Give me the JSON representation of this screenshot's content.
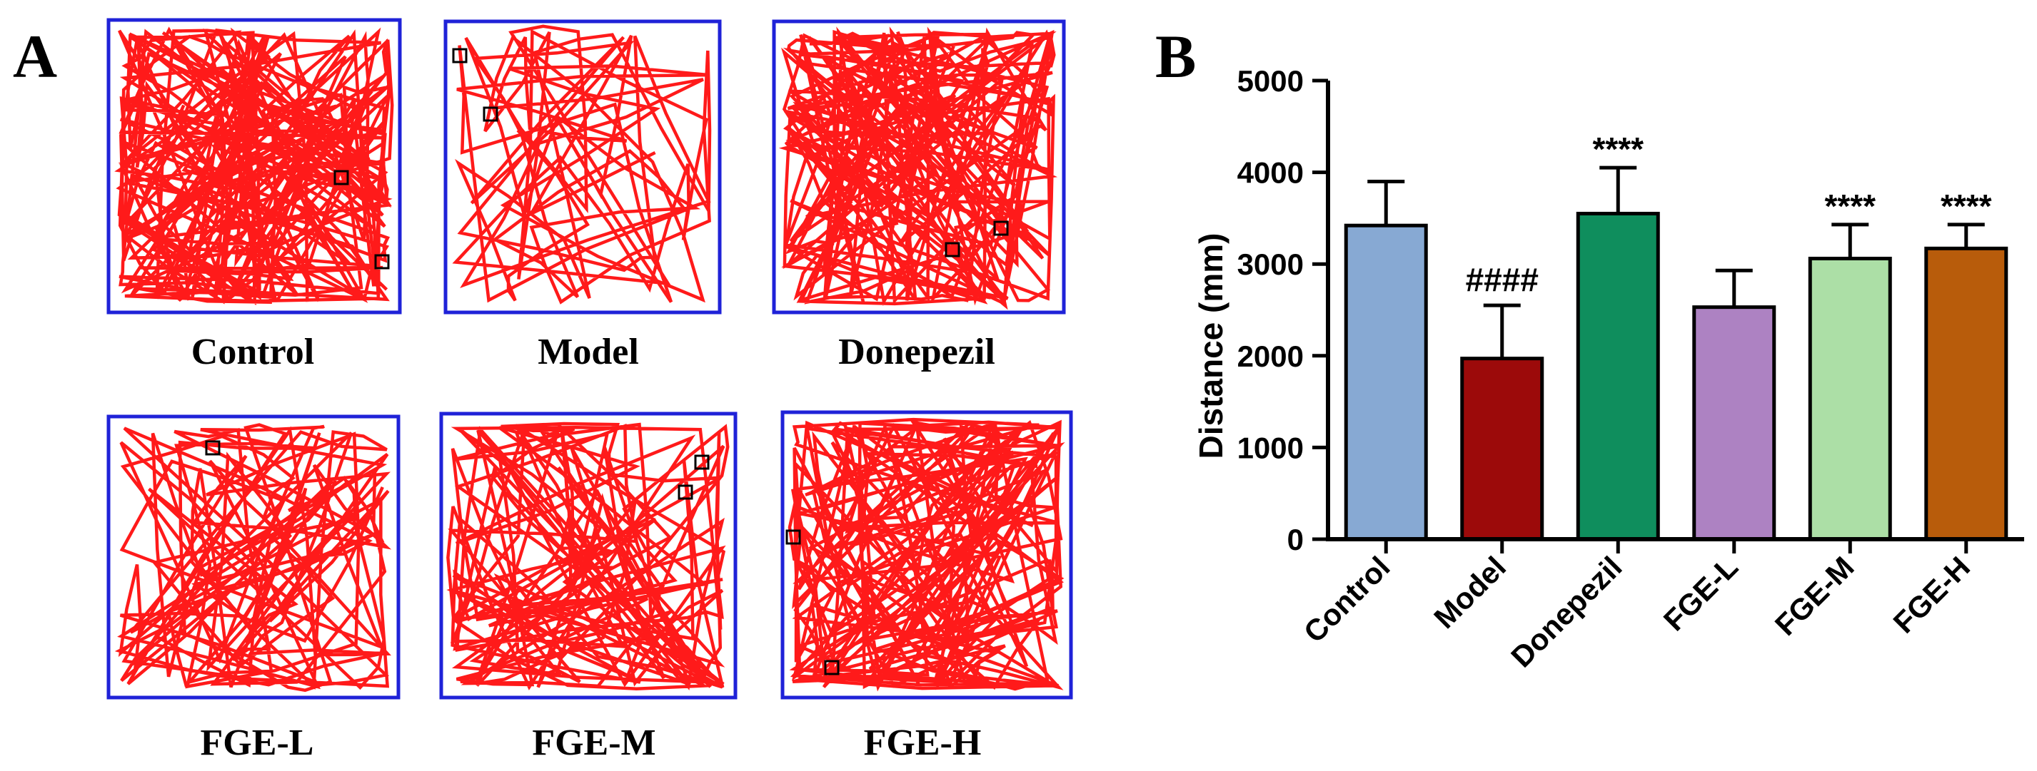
{
  "panels": {
    "a_letter": "A",
    "b_letter": "B"
  },
  "tracks": [
    {
      "label": "Control",
      "seed": 11,
      "density": 230
    },
    {
      "label": "Model",
      "seed": 23,
      "density": 70
    },
    {
      "label": "Donepezil",
      "seed": 37,
      "density": 200
    },
    {
      "label": "FGE-L",
      "seed": 41,
      "density": 120
    },
    {
      "label": "FGE-M",
      "seed": 53,
      "density": 140
    },
    {
      "label": "FGE-H",
      "seed": 67,
      "density": 190
    }
  ],
  "colors": {
    "track_border": "#1f22d8",
    "track_path": "#ff1a1a",
    "marker": "#000000",
    "bar_outline": "#000000"
  },
  "chart_data": {
    "type": "bar",
    "title": "",
    "xlabel": "",
    "ylabel": "Distance (mm)",
    "ylim": [
      0,
      5000
    ],
    "yticks": [
      "0",
      "1000",
      "2000",
      "3000",
      "4000",
      "5000"
    ],
    "grid": false,
    "categories": [
      "Control",
      "Model",
      "Donepezil",
      "FGE-L",
      "FGE-M",
      "FGE-H"
    ],
    "values": [
      3420,
      1970,
      3550,
      2530,
      3060,
      3170
    ],
    "errors": [
      480,
      580,
      500,
      400,
      370,
      260
    ],
    "annotations": [
      "",
      "####",
      "****",
      "",
      "****",
      "****"
    ],
    "bar_colors": [
      "#87a9d3",
      "#9c0a0a",
      "#0f8e5d",
      "#ad82c2",
      "#acdfa6",
      "#b85c0b"
    ]
  }
}
